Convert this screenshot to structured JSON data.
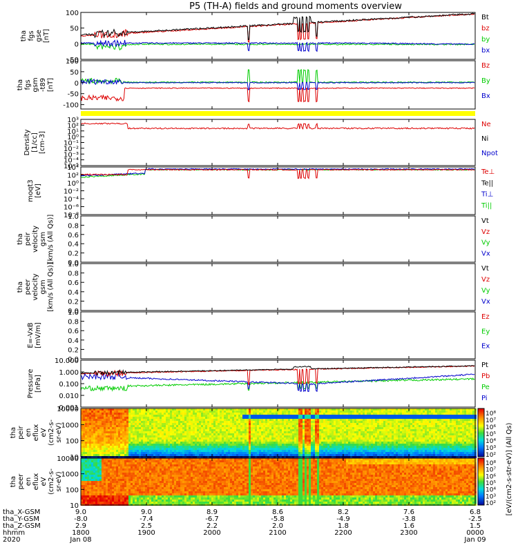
{
  "title": "P5 (TH-A) fields and ground moments overview",
  "colors": {
    "black": "#000000",
    "red": "#dd0000",
    "green": "#00cc00",
    "blue": "#0000cc",
    "yellow": "#ffff00"
  },
  "chart_data": [
    {
      "id": "fgs_gse",
      "type": "line",
      "ylabel_lines": [
        "tha",
        "fgs",
        "gse",
        "[nT]"
      ],
      "yticks": [
        "100",
        "50",
        "0",
        "-50"
      ],
      "ylim": [
        -50,
        100
      ],
      "legend": [
        {
          "label": "Bt",
          "color": "black"
        },
        {
          "label": "bz",
          "color": "red"
        },
        {
          "label": "by",
          "color": "green"
        },
        {
          "label": "bx",
          "color": "blue"
        }
      ]
    },
    {
      "id": "fgs_gsm",
      "type": "line",
      "ylabel_lines": [
        "tha",
        "fgs",
        "gsm",
        "-t89",
        "[nT]"
      ],
      "yticks": [
        "100",
        "50",
        "0",
        "-50",
        "-100"
      ],
      "ylim": [
        -120,
        100
      ],
      "legend": [
        {
          "label": "Bz",
          "color": "red"
        },
        {
          "label": "By",
          "color": "green"
        },
        {
          "label": "Bx",
          "color": "blue"
        }
      ]
    },
    {
      "id": "density",
      "type": "line",
      "ylabel_lines": [
        "Density",
        "[1/cc]",
        "[cm-3]"
      ],
      "yticks": [
        "10³",
        "10²",
        "10¹",
        "10⁰",
        "10⁻¹",
        "10⁻²",
        "10⁻³",
        "10⁻⁴",
        "10⁻⁵"
      ],
      "legend": [
        {
          "label": "Ne",
          "color": "red"
        },
        {
          "label": "Ni",
          "color": "black"
        },
        {
          "label": "Npot",
          "color": "blue"
        }
      ]
    },
    {
      "id": "temp",
      "type": "line",
      "ylabel_lines": [
        "moqt3",
        "[eV]"
      ],
      "yticks": [
        "10⁴",
        "10²",
        "10⁰",
        "10⁻²",
        "10⁻⁴",
        "10⁻⁶",
        "10⁻⁸"
      ],
      "legend": [
        {
          "label": "Te⊥",
          "color": "red"
        },
        {
          "label": "Te||",
          "color": "black"
        },
        {
          "label": "Ti⊥",
          "color": "blue"
        },
        {
          "label": "Ti||",
          "color": "green"
        }
      ]
    },
    {
      "id": "peir_vel",
      "type": "line",
      "ylabel_lines": [
        "tha",
        "peir",
        "velocity",
        "gsm",
        "[km/s (All Qs)]"
      ],
      "yticks": [
        "1.0",
        "0.8",
        "0.6",
        "0.4",
        "0.2",
        "0.0"
      ],
      "ylim": [
        0,
        1
      ],
      "legend": [
        {
          "label": "Vt",
          "color": "black"
        },
        {
          "label": "Vz",
          "color": "red"
        },
        {
          "label": "Vy",
          "color": "green"
        },
        {
          "label": "Vx",
          "color": "blue"
        }
      ]
    },
    {
      "id": "peer_vel",
      "type": "line",
      "ylabel_lines": [
        "tha",
        "peer",
        "velocity",
        "gsm",
        "[km/s (All Qs)]"
      ],
      "yticks": [
        "1.0",
        "0.8",
        "0.6",
        "0.4",
        "0.2",
        "0.0"
      ],
      "ylim": [
        0,
        1
      ],
      "legend": [
        {
          "label": "Vt",
          "color": "black"
        },
        {
          "label": "Vz",
          "color": "red"
        },
        {
          "label": "Vy",
          "color": "green"
        },
        {
          "label": "Vx",
          "color": "blue"
        }
      ]
    },
    {
      "id": "efield",
      "type": "line",
      "ylabel_lines": [
        "E=-VxB",
        "[mV/m]"
      ],
      "yticks": [
        "1.0",
        "0.8",
        "0.6",
        "0.4",
        "0.2",
        "0.0"
      ],
      "ylim": [
        0,
        1
      ],
      "legend": [
        {
          "label": "Ez",
          "color": "red"
        },
        {
          "label": "Ey",
          "color": "green"
        },
        {
          "label": "Ex",
          "color": "blue"
        }
      ]
    },
    {
      "id": "pressure",
      "type": "line",
      "ylabel_lines": [
        "Pressure",
        "[nPa]"
      ],
      "yticks": [
        "10.000",
        "1.000",
        "0.100",
        "0.010",
        "0.001"
      ],
      "legend": [
        {
          "label": "Pt",
          "color": "black"
        },
        {
          "label": "Pb",
          "color": "red"
        },
        {
          "label": "Pe",
          "color": "green"
        },
        {
          "label": "Pi",
          "color": "blue"
        }
      ]
    },
    {
      "id": "peir_en",
      "type": "heatmap",
      "ylabel_lines": [
        "tha",
        "peir",
        "en",
        "eflux",
        "eV",
        "(cm2-s-",
        "sr-eV)"
      ],
      "yticks": [
        "10000",
        "1000",
        "100",
        "10"
      ],
      "cbar_ticks": [
        "10⁸",
        "10⁷",
        "10⁶",
        "10⁵",
        "10⁴",
        "10³",
        "10²"
      ]
    },
    {
      "id": "peer_en",
      "type": "heatmap",
      "ylabel_lines": [
        "tha",
        "peer",
        "en",
        "eflux",
        "eV",
        "(cm2-s-",
        "sr-eV)"
      ],
      "yticks": [
        "10000",
        "1000",
        "100",
        "10"
      ],
      "cbar_ticks": [
        "10⁸",
        "10⁷",
        "10⁶",
        "10⁵",
        "10⁴",
        "10³",
        "10²"
      ],
      "cbar_label": "[eV/(cm2-s-str-eV)] (All Qs)"
    }
  ],
  "xaxis": {
    "row_labels": [
      "tha_X-GSM",
      "tha_Y-GSM",
      "tha_Z-GSM",
      "hhmm",
      "2020"
    ],
    "columns": [
      {
        "x": "9.0",
        "y": "-8.0",
        "z": "2.9",
        "hhmm": "1800",
        "date": "Jan 08"
      },
      {
        "x": "9.0",
        "y": "-7.4",
        "z": "2.5",
        "hhmm": "1900",
        "date": ""
      },
      {
        "x": "8.9",
        "y": "-6.7",
        "z": "2.2",
        "hhmm": "2000",
        "date": ""
      },
      {
        "x": "8.6",
        "y": "-5.8",
        "z": "2.0",
        "hhmm": "2100",
        "date": ""
      },
      {
        "x": "8.2",
        "y": "-4.9",
        "z": "1.8",
        "hhmm": "2200",
        "date": ""
      },
      {
        "x": "7.6",
        "y": "-3.8",
        "z": "1.6",
        "hhmm": "2300",
        "date": ""
      },
      {
        "x": "6.8",
        "y": "-2.5",
        "z": "1.5",
        "hhmm": "0000",
        "date": "Jan 09"
      }
    ]
  }
}
